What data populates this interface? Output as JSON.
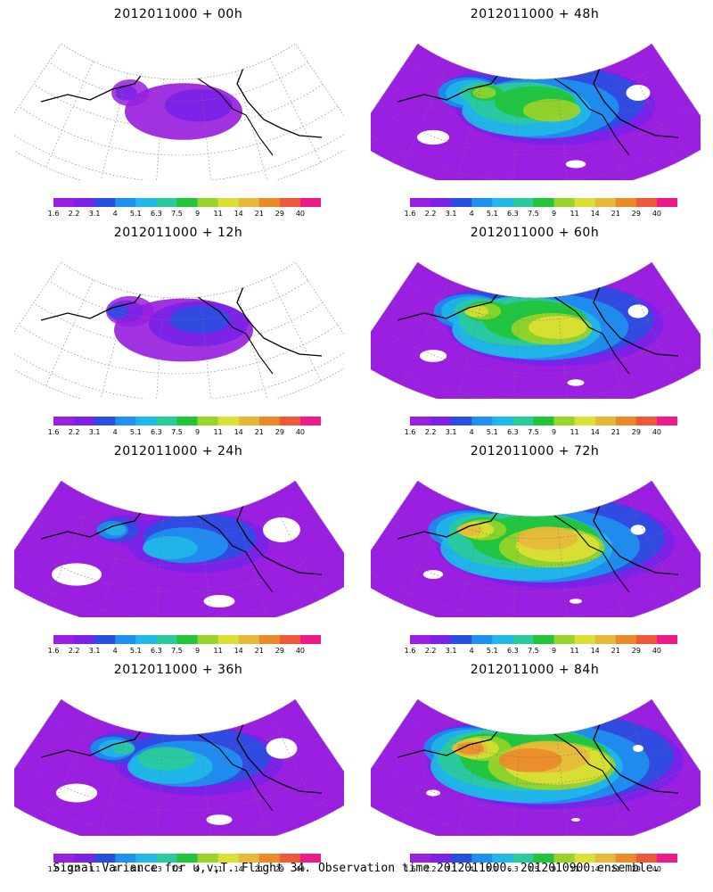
{
  "caption": "Signal Variance for u,v,T. Flight 34. Observation time 2012011000. 2012010900 ensemble.",
  "colorbar": {
    "ticks": [
      "1.6",
      "2.2",
      "3.1",
      "4",
      "5.1",
      "6.3",
      "7.5",
      "9",
      "11",
      "14",
      "21",
      "29",
      "40"
    ],
    "colors": [
      "#9a1fe0",
      "#7a22e8",
      "#2a4ee0",
      "#1e90f0",
      "#1fb8e8",
      "#2acb9a",
      "#22c43a",
      "#9ad32a",
      "#dde034",
      "#e8b838",
      "#ec8a2a",
      "#f0583a",
      "#ee1a8a"
    ]
  },
  "panels": [
    {
      "title": "2012011000 + 00h",
      "level": 0.05
    },
    {
      "title": "2012011000 + 48h",
      "level": 0.55
    },
    {
      "title": "2012011000 + 12h",
      "level": 0.15
    },
    {
      "title": "2012011000 + 60h",
      "level": 0.62
    },
    {
      "title": "2012011000 + 24h",
      "level": 0.3
    },
    {
      "title": "2012011000 + 72h",
      "level": 0.72
    },
    {
      "title": "2012011000 + 36h",
      "level": 0.42
    },
    {
      "title": "2012011000 + 84h",
      "level": 0.8
    }
  ]
}
